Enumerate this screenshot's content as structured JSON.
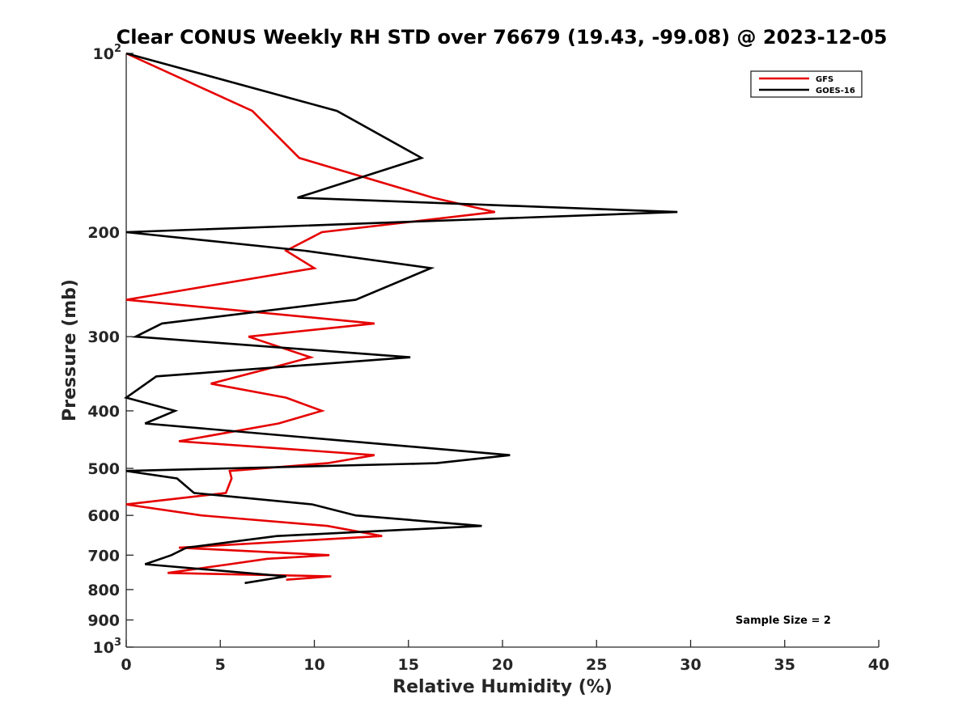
{
  "chart_data": {
    "type": "line",
    "title": "Clear CONUS Weekly RH STD over 76679 (19.43, -99.08) @ 2023-12-05",
    "xlabel": "Relative Humidity (%)",
    "ylabel": "Pressure (mb)",
    "xlim": [
      0,
      40
    ],
    "ylim": [
      100,
      1000
    ],
    "y_scale": "log",
    "y_reversed": true,
    "x_ticks": [
      "0",
      "5",
      "10",
      "15",
      "20",
      "25",
      "30",
      "35",
      "40"
    ],
    "y_ticks": [
      {
        "value": 100,
        "label": "10",
        "sup": "2"
      },
      {
        "value": 200,
        "label": "200",
        "sup": ""
      },
      {
        "value": 300,
        "label": "300",
        "sup": ""
      },
      {
        "value": 400,
        "label": "400",
        "sup": ""
      },
      {
        "value": 500,
        "label": "500",
        "sup": ""
      },
      {
        "value": 600,
        "label": "600",
        "sup": ""
      },
      {
        "value": 700,
        "label": "700",
        "sup": ""
      },
      {
        "value": 800,
        "label": "800",
        "sup": ""
      },
      {
        "value": 900,
        "label": "900",
        "sup": ""
      },
      {
        "value": 1000,
        "label": "10",
        "sup": "3"
      }
    ],
    "legend_position": "top-right",
    "grid": false,
    "series": [
      {
        "name": "GFS",
        "color": "#e60000",
        "points": [
          [
            0.0,
            100
          ],
          [
            6.7,
            125
          ],
          [
            9.2,
            150
          ],
          [
            16.3,
            175
          ],
          [
            19.6,
            185
          ],
          [
            10.4,
            200
          ],
          [
            8.5,
            215
          ],
          [
            10.0,
            230
          ],
          [
            0.0,
            260
          ],
          [
            13.2,
            285
          ],
          [
            6.5,
            300
          ],
          [
            9.8,
            325
          ],
          [
            7.5,
            340
          ],
          [
            4.5,
            360
          ],
          [
            8.5,
            380
          ],
          [
            10.4,
            400
          ],
          [
            8.1,
            420
          ],
          [
            2.8,
            450
          ],
          [
            13.2,
            475
          ],
          [
            10.7,
            490
          ],
          [
            5.5,
            505
          ],
          [
            5.6,
            520
          ],
          [
            5.3,
            550
          ],
          [
            0.0,
            575
          ],
          [
            4.0,
            600
          ],
          [
            10.7,
            625
          ],
          [
            13.6,
            650
          ],
          [
            2.8,
            680
          ],
          [
            10.8,
            700
          ],
          [
            7.5,
            710
          ],
          [
            5.5,
            725
          ],
          [
            2.2,
            750
          ],
          [
            10.9,
            760
          ],
          [
            8.5,
            770
          ]
        ]
      },
      {
        "name": "GOES-16",
        "color": "#000000",
        "points": [
          [
            0.0,
            100
          ],
          [
            11.2,
            125
          ],
          [
            15.7,
            150
          ],
          [
            9.1,
            175
          ],
          [
            29.3,
            185
          ],
          [
            0.0,
            200
          ],
          [
            9.5,
            215
          ],
          [
            16.2,
            230
          ],
          [
            12.2,
            260
          ],
          [
            1.9,
            285
          ],
          [
            0.5,
            300
          ],
          [
            15.1,
            325
          ],
          [
            1.6,
            350
          ],
          [
            0.0,
            380
          ],
          [
            2.6,
            400
          ],
          [
            1.0,
            420
          ],
          [
            20.4,
            475
          ],
          [
            16.5,
            490
          ],
          [
            0.0,
            505
          ],
          [
            2.7,
            520
          ],
          [
            3.6,
            550
          ],
          [
            9.9,
            575
          ],
          [
            12.2,
            600
          ],
          [
            18.9,
            625
          ],
          [
            8.0,
            650
          ],
          [
            3.2,
            680
          ],
          [
            2.4,
            700
          ],
          [
            1.0,
            725
          ],
          [
            8.5,
            760
          ],
          [
            6.3,
            780
          ]
        ]
      }
    ],
    "annotation": "Sample Size = 2"
  }
}
